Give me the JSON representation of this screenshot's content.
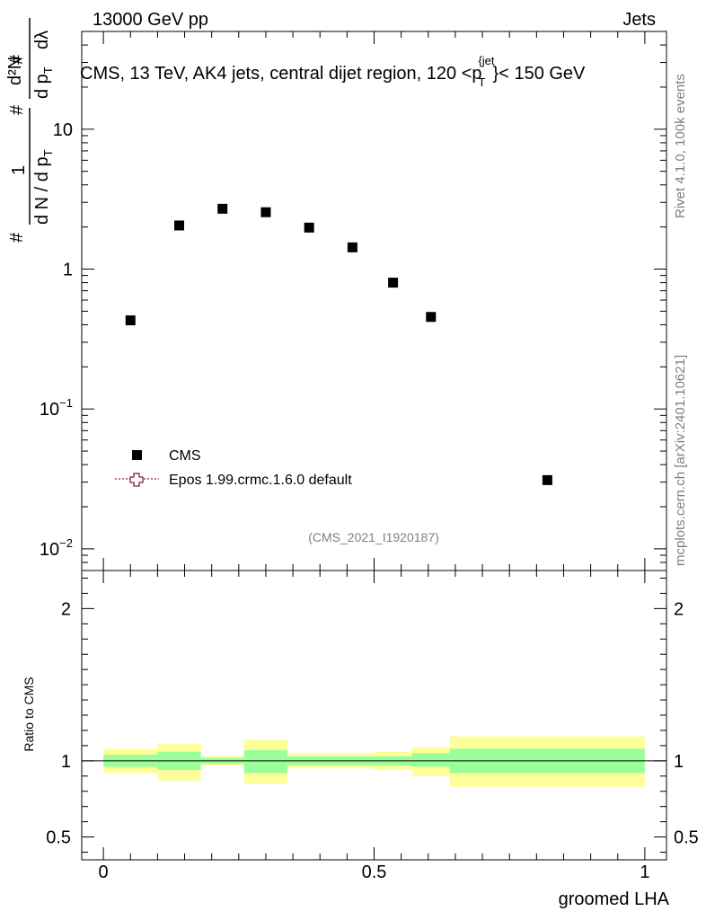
{
  "header": {
    "left": "13000 GeV pp",
    "right": "Jets"
  },
  "side_labels": {
    "rivet": "Rivet 4.1.0,  100k events",
    "mcplots": "mcplots.cern.ch [arXiv:2401.10621]"
  },
  "chart_data": [
    {
      "type": "scatter",
      "panel": "main",
      "title": "CMS, 13 TeV, AK4 jets, central dijet region, 120 < p_T^{jet} < 150 GeV",
      "title_parts": {
        "prefix": "CMS, 13 TeV, AK4 jets, central dijet region, 120 <p",
        "sub": "T",
        "sup": "{jet",
        "suffix": "}< 150 GeV"
      },
      "ylabel": "1/(dN/dp_T) d²N/(dp_T dλ)",
      "ylabel_parts": {
        "d2n_num": "d²N",
        "dpt_den": "d p",
        "lambda_den": "dλ",
        "frac_num": "1",
        "frac_den": "d N / d p",
        "sub_t": "T",
        "hash": "#"
      },
      "xlabel": "groomed LHA",
      "yscale": "log",
      "ylim": [
        0.007,
        50
      ],
      "xlim": [
        -0.04,
        1.04
      ],
      "y_ticks": [
        {
          "value": 0.01,
          "base": "10",
          "exp": "−2"
        },
        {
          "value": 0.1,
          "base": "10",
          "exp": "−1"
        },
        {
          "value": 1,
          "base": "1",
          "exp": ""
        },
        {
          "value": 10,
          "base": "10",
          "exp": ""
        }
      ],
      "watermark": "(CMS_2021_I1920187)",
      "legend": [
        {
          "label": "CMS",
          "marker": "square",
          "color": "#000000"
        },
        {
          "label": "Epos 1.99.crmc.1.6.0 default",
          "marker": "open-cross",
          "color": "#8b1a3a"
        }
      ],
      "legend_position": "center-left",
      "series": [
        {
          "name": "CMS",
          "x": [
            0.05,
            0.14,
            0.22,
            0.3,
            0.38,
            0.46,
            0.535,
            0.605,
            0.82
          ],
          "y": [
            0.43,
            2.05,
            2.7,
            2.55,
            1.98,
            1.43,
            0.8,
            0.455,
            0.031
          ]
        }
      ]
    },
    {
      "type": "area",
      "panel": "ratio",
      "ylabel": "Ratio to CMS",
      "xlabel": "groomed LHA",
      "xlim": [
        -0.04,
        1.04
      ],
      "ylim": [
        0.35,
        2.25
      ],
      "x_ticks": [
        "0",
        "0.5",
        "1"
      ],
      "x_tick_values": [
        0,
        0.5,
        1
      ],
      "y_ticks": [
        "0.5",
        "1",
        "2"
      ],
      "y_tick_values": [
        0.5,
        1,
        2
      ],
      "reference_line": 1,
      "colors": {
        "inner_band": "#99ff99",
        "outer_band": "#ffff99"
      },
      "bands": [
        {
          "x0": 0.0,
          "x1": 0.1,
          "inner": [
            0.96,
            1.04
          ],
          "outer": [
            0.92,
            1.08
          ]
        },
        {
          "x0": 0.1,
          "x1": 0.18,
          "inner": [
            0.94,
            1.06
          ],
          "outer": [
            0.87,
            1.11
          ]
        },
        {
          "x0": 0.18,
          "x1": 0.26,
          "inner": [
            0.98,
            1.02
          ],
          "outer": [
            0.97,
            1.03
          ]
        },
        {
          "x0": 0.26,
          "x1": 0.34,
          "inner": [
            0.92,
            1.07
          ],
          "outer": [
            0.85,
            1.14
          ]
        },
        {
          "x0": 0.34,
          "x1": 0.42,
          "inner": [
            0.97,
            1.03
          ],
          "outer": [
            0.95,
            1.05
          ]
        },
        {
          "x0": 0.42,
          "x1": 0.5,
          "inner": [
            0.97,
            1.03
          ],
          "outer": [
            0.95,
            1.05
          ]
        },
        {
          "x0": 0.5,
          "x1": 0.57,
          "inner": [
            0.97,
            1.03
          ],
          "outer": [
            0.94,
            1.06
          ]
        },
        {
          "x0": 0.57,
          "x1": 0.64,
          "inner": [
            0.96,
            1.05
          ],
          "outer": [
            0.9,
            1.09
          ]
        },
        {
          "x0": 0.64,
          "x1": 1.0,
          "inner": [
            0.92,
            1.08
          ],
          "outer": [
            0.83,
            1.16
          ]
        }
      ]
    }
  ]
}
